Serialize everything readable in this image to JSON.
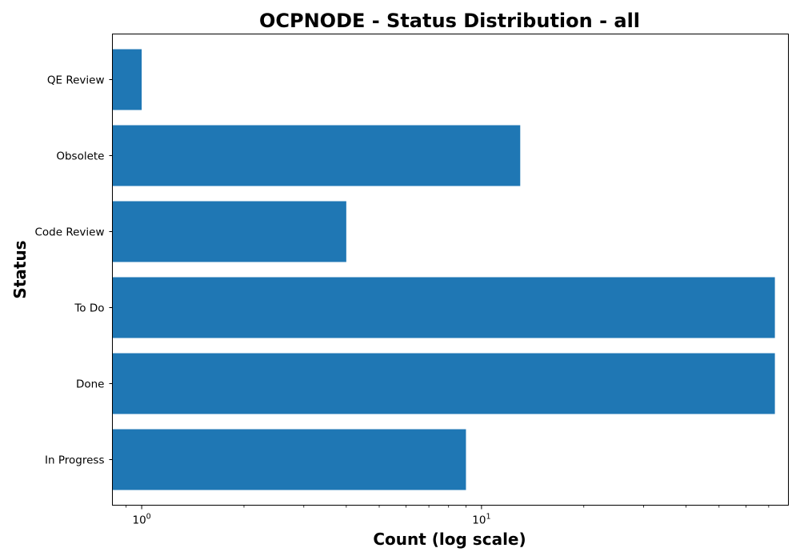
{
  "chart_data": {
    "type": "bar",
    "orientation": "horizontal",
    "title": "OCPNODE - Status Distribution - all",
    "xlabel": "Count (log scale)",
    "ylabel": "Status",
    "xscale": "log",
    "xlim": [
      0.82,
      80
    ],
    "categories": [
      "In Progress",
      "Done",
      "To Do",
      "Code Review",
      "Obsolete",
      "QE Review"
    ],
    "values": [
      9,
      73,
      73,
      4,
      13,
      1
    ],
    "x_ticks": [
      {
        "base": "10",
        "exp": "0",
        "value": 1
      },
      {
        "base": "10",
        "exp": "1",
        "value": 10
      }
    ],
    "bar_color": "#1f77b4",
    "grid": false,
    "legend": "none"
  }
}
